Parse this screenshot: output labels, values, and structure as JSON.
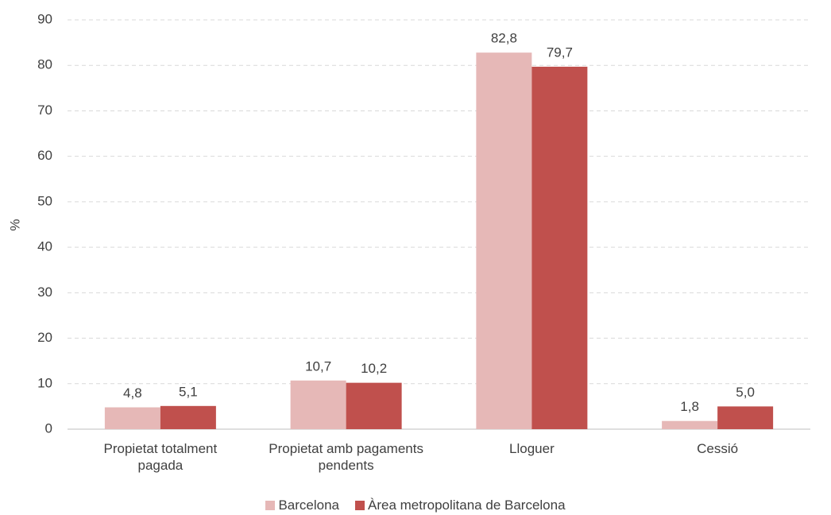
{
  "chart_data": {
    "type": "bar",
    "y_label": "%",
    "categories": [
      "Propietat totalment pagada",
      "Propietat amb pagaments pendents",
      "Lloguer",
      "Cessió"
    ],
    "series": [
      {
        "name": "Barcelona",
        "color": "#e6b8b7",
        "values": [
          4.8,
          10.7,
          82.8,
          1.8
        ],
        "value_labels": [
          "4,8",
          "10,7",
          "82,8",
          "1,8"
        ]
      },
      {
        "name": "Àrea metropolitana de Barcelona",
        "color": "#c0504d",
        "values": [
          5.1,
          10.2,
          79.7,
          5.0
        ],
        "value_labels": [
          "5,1",
          "10,2",
          "79,7",
          "5,0"
        ]
      }
    ],
    "ylim": [
      0,
      90
    ],
    "yticks": [
      0,
      10,
      20,
      30,
      40,
      50,
      60,
      70,
      80,
      90
    ],
    "grid": true,
    "legend": "bottom"
  }
}
